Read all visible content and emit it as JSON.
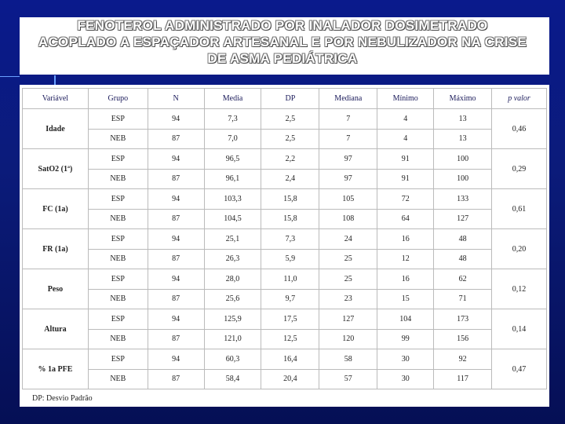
{
  "title": {
    "lines": [
      "FENOTEROL ADMINISTRADO POR INALADOR DOSIMETRADO",
      "ACOPLADO A ESPAÇADOR ARTESANAL E POR NEBULIZADOR NA CRISE",
      "DE ASMA PEDIÁTRICA"
    ]
  },
  "table": {
    "headers": [
      "Variável",
      "Grupo",
      "N",
      "Media",
      "DP",
      "Mediana",
      "Mínimo",
      "Máximo",
      "p valor"
    ],
    "rows": [
      {
        "variable": "Idade",
        "groups": [
          [
            "ESP",
            "94",
            "7,3",
            "2,5",
            "7",
            "4",
            "13"
          ],
          [
            "NEB",
            "87",
            "7,0",
            "2,5",
            "7",
            "4",
            "13"
          ]
        ],
        "p": "0,46"
      },
      {
        "variable": "SatO2 (1ª)",
        "groups": [
          [
            "ESP",
            "94",
            "96,5",
            "2,2",
            "97",
            "91",
            "100"
          ],
          [
            "NEB",
            "87",
            "96,1",
            "2,4",
            "97",
            "91",
            "100"
          ]
        ],
        "p": "0,29"
      },
      {
        "variable": "FC (1a)",
        "groups": [
          [
            "ESP",
            "94",
            "103,3",
            "15,8",
            "105",
            "72",
            "133"
          ],
          [
            "NEB",
            "87",
            "104,5",
            "15,8",
            "108",
            "64",
            "127"
          ]
        ],
        "p": "0,61"
      },
      {
        "variable": "FR (1a)",
        "groups": [
          [
            "ESP",
            "94",
            "25,1",
            "7,3",
            "24",
            "16",
            "48"
          ],
          [
            "NEB",
            "87",
            "26,3",
            "5,9",
            "25",
            "12",
            "48"
          ]
        ],
        "p": "0,20"
      },
      {
        "variable": "Peso",
        "groups": [
          [
            "ESP",
            "94",
            "28,0",
            "11,0",
            "25",
            "16",
            "62"
          ],
          [
            "NEB",
            "87",
            "25,6",
            "9,7",
            "23",
            "15",
            "71"
          ]
        ],
        "p": "0,12"
      },
      {
        "variable": "Altura",
        "groups": [
          [
            "ESP",
            "94",
            "125,9",
            "17,5",
            "127",
            "104",
            "173"
          ],
          [
            "NEB",
            "87",
            "121,0",
            "12,5",
            "120",
            "99",
            "156"
          ]
        ],
        "p": "0,14"
      },
      {
        "variable": "% 1a PFE",
        "groups": [
          [
            "ESP",
            "94",
            "60,3",
            "16,4",
            "58",
            "30",
            "92"
          ],
          [
            "NEB",
            "87",
            "58,4",
            "20,4",
            "57",
            "30",
            "117"
          ]
        ],
        "p": "0,47"
      }
    ],
    "footnote": "DP: Desvio Padrão"
  }
}
